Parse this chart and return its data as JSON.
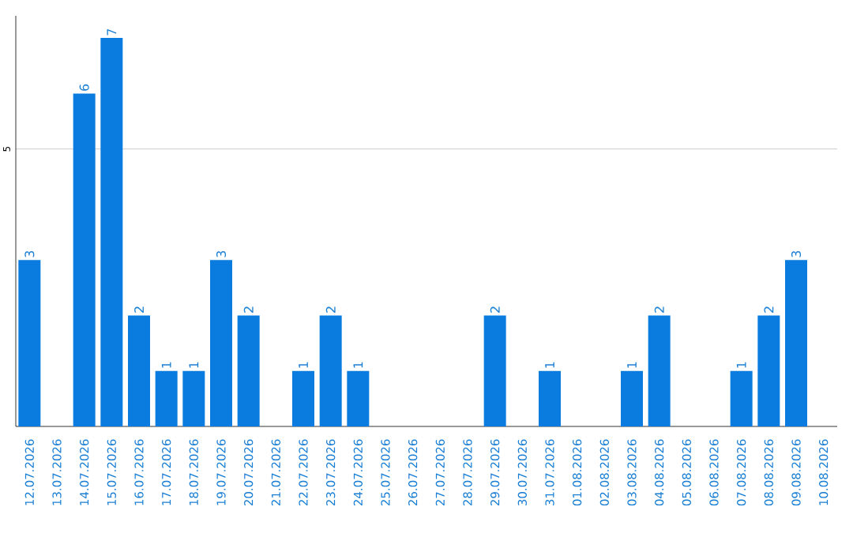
{
  "chart_data": {
    "type": "bar",
    "categories": [
      "12.07.2026",
      "13.07.2026",
      "14.07.2026",
      "15.07.2026",
      "16.07.2026",
      "17.07.2026",
      "18.07.2026",
      "19.07.2026",
      "20.07.2026",
      "21.07.2026",
      "22.07.2026",
      "23.07.2026",
      "24.07.2026",
      "25.07.2026",
      "26.07.2026",
      "27.07.2026",
      "28.07.2026",
      "29.07.2026",
      "30.07.2026",
      "31.07.2026",
      "01.08.2026",
      "02.08.2026",
      "03.08.2026",
      "04.08.2026",
      "05.08.2026",
      "06.08.2026",
      "07.08.2026",
      "08.08.2026",
      "09.08.2026",
      "10.08.2026"
    ],
    "values": [
      3,
      0,
      6,
      7,
      2,
      1,
      1,
      3,
      2,
      0,
      1,
      2,
      1,
      0,
      0,
      0,
      0,
      2,
      0,
      1,
      0,
      0,
      1,
      2,
      0,
      0,
      1,
      2,
      3,
      0
    ],
    "value_labels": [
      "3",
      null,
      "6",
      "7",
      "2",
      "1",
      "1",
      "3",
      "2",
      null,
      "1",
      "2",
      "1",
      null,
      null,
      null,
      null,
      "2",
      null,
      "1",
      null,
      null,
      "1",
      "2",
      null,
      null,
      "1",
      "2",
      "3",
      null
    ],
    "color": "#0a7ce0",
    "ylim": [
      0,
      7.4
    ],
    "yticks": [
      5
    ],
    "grid": "y"
  }
}
